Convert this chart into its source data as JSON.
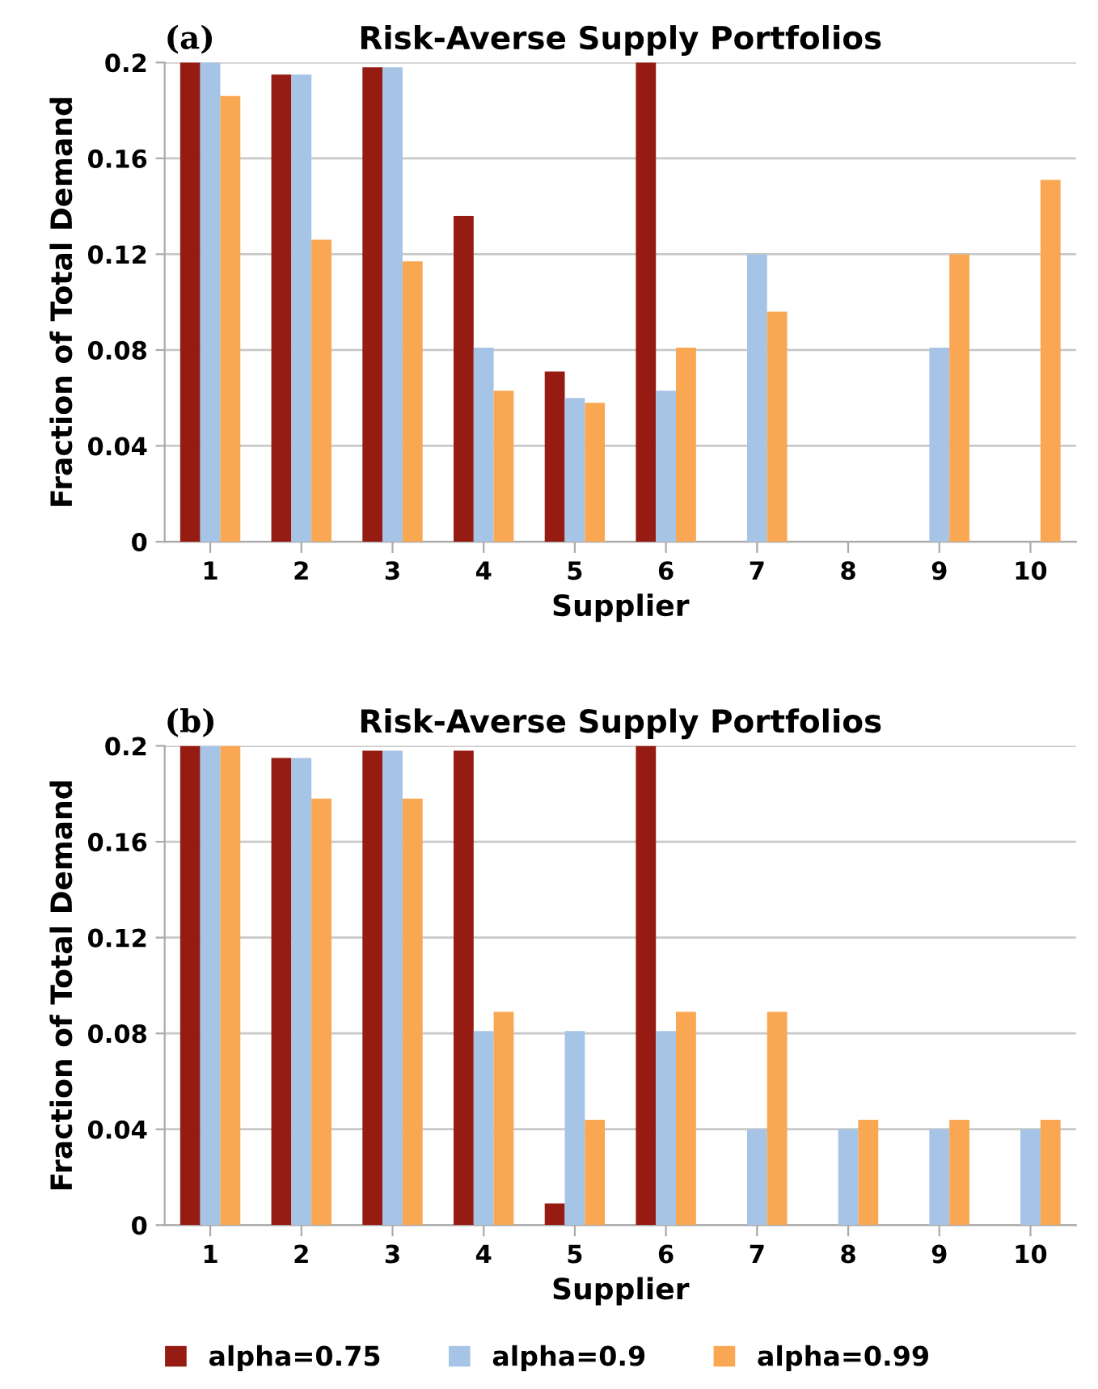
{
  "chart_data": [
    {
      "type": "bar",
      "title": "Risk-Averse Supply Portfolios",
      "xlabel": "Supplier",
      "ylabel": "Fraction of Total Demand",
      "annotations": [
        "(a)"
      ],
      "categories": [
        "1",
        "2",
        "3",
        "4",
        "5",
        "6",
        "7",
        "8",
        "9",
        "10"
      ],
      "ylim": [
        0,
        0.2
      ],
      "yticks": [
        0,
        0.04,
        0.08,
        0.12,
        0.16,
        0.2
      ],
      "grid": "y",
      "legend": false,
      "series": [
        {
          "color": "#951b13",
          "values": [
            0.2,
            0.195,
            0.198,
            0.136,
            0.071,
            0.2,
            0,
            0,
            0,
            0
          ]
        },
        {
          "color": "#a6c4e6",
          "values": [
            0.2,
            0.195,
            0.198,
            0.081,
            0.06,
            0.063,
            0.12,
            0,
            0.081,
            0
          ]
        },
        {
          "color": "#f9a752",
          "values": [
            0.186,
            0.126,
            0.117,
            0.063,
            0.058,
            0.081,
            0.096,
            0,
            0.12,
            0.151
          ]
        }
      ]
    },
    {
      "type": "bar",
      "title": "Risk-Averse Supply Portfolios",
      "xlabel": "Supplier",
      "ylabel": "Fraction of Total Demand",
      "annotations": [
        "(b)"
      ],
      "categories": [
        "1",
        "2",
        "3",
        "4",
        "5",
        "6",
        "7",
        "8",
        "9",
        "10"
      ],
      "ylim": [
        0,
        0.2
      ],
      "yticks": [
        0,
        0.04,
        0.08,
        0.12,
        0.16,
        0.2
      ],
      "grid": "y",
      "legend": "bottom",
      "series": [
        {
          "name": "alpha=0.75",
          "color": "#951b13",
          "values": [
            0.2,
            0.195,
            0.198,
            0.198,
            0.009,
            0.2,
            0,
            0,
            0,
            0
          ]
        },
        {
          "name": "alpha=0.9",
          "color": "#a6c4e6",
          "values": [
            0.2,
            0.195,
            0.198,
            0.081,
            0.081,
            0.081,
            0.04,
            0.04,
            0.04,
            0.04
          ]
        },
        {
          "name": "alpha=0.99",
          "color": "#f9a752",
          "values": [
            0.2,
            0.178,
            0.178,
            0.089,
            0.044,
            0.089,
            0.089,
            0.044,
            0.044,
            0.044
          ]
        }
      ]
    }
  ]
}
